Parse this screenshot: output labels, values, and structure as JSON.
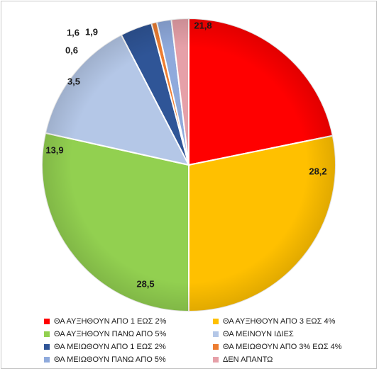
{
  "chart_data": {
    "type": "pie",
    "title": "",
    "slices": [
      {
        "label": "ΘΑ ΑΥΞΗΘΟΥΝ ΑΠΟ 1 ΕΩΣ 2%",
        "value": 21.8,
        "display": "21,8",
        "color": "#ff0000"
      },
      {
        "label": "ΘΑ ΑΥΞΗΘΟΥΝ ΑΠΟ 3 ΕΩΣ 4%",
        "value": 28.2,
        "display": "28,2",
        "color": "#ffc000"
      },
      {
        "label": "ΘΑ ΑΥΞΗΘΟΥΝ ΠΑΝΩ ΑΠΟ 5%",
        "value": 28.5,
        "display": "28,5",
        "color": "#92d050"
      },
      {
        "label": "ΘΑ ΜΕΙΝΟΥΝ ΙΔΙΕΣ",
        "value": 13.9,
        "display": "13,9",
        "color": "#b4c7e7"
      },
      {
        "label": "ΘΑ ΜΕΙΩΘΟΥΝ ΑΠΟ 1 ΕΩΣ 2%",
        "value": 3.5,
        "display": "3,5",
        "color": "#2f5597"
      },
      {
        "label": "ΘΑ ΜΕΙΩΘΟΥΝ ΑΠΟ 3% ΕΩΣ 4%",
        "value": 0.6,
        "display": "0,6",
        "color": "#ed7d31"
      },
      {
        "label": "ΘΑ ΜΕΙΩΘΟΥΝ ΠΑΝΩ ΑΠΟ 5%",
        "value": 1.6,
        "display": "1,6",
        "color": "#8faadc"
      },
      {
        "label": "ΔΕΝ ΑΠΑΝΤΩ",
        "value": 1.9,
        "display": "1,9",
        "color": "#e6a0a8"
      }
    ],
    "legend_position": "bottom",
    "start_angle_deg": 0,
    "direction": "clockwise"
  }
}
